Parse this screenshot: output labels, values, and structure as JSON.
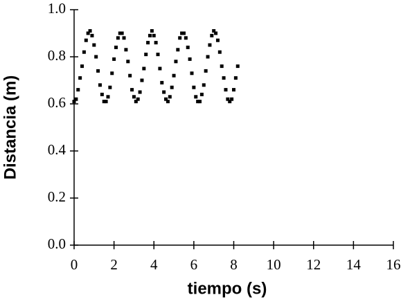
{
  "chart_data": {
    "type": "scatter",
    "x_label": "tiempo (s)",
    "y_label": "Distancia (m)",
    "x": [
      0,
      0.1,
      0.2,
      0.3,
      0.4,
      0.5,
      0.6,
      0.7,
      0.8,
      0.9,
      1.0,
      1.1,
      1.2,
      1.3,
      1.4,
      1.5,
      1.6,
      1.7,
      1.8,
      1.9,
      2.0,
      2.1,
      2.2,
      2.3,
      2.4,
      2.5,
      2.6,
      2.7,
      2.8,
      2.9,
      3.0,
      3.1,
      3.2,
      3.3,
      3.4,
      3.5,
      3.6,
      3.7,
      3.8,
      3.9,
      4.0,
      4.1,
      4.2,
      4.3,
      4.4,
      4.5,
      4.6,
      4.7,
      4.8,
      4.9,
      5.0,
      5.1,
      5.2,
      5.3,
      5.4,
      5.5,
      5.6,
      5.7,
      5.8,
      5.9,
      6.0,
      6.1,
      6.2,
      6.3,
      6.4,
      6.5,
      6.6,
      6.7,
      6.8,
      6.9,
      7.0,
      7.1,
      7.2,
      7.3,
      7.4,
      7.5,
      7.6,
      7.7,
      7.8,
      7.9,
      8.0,
      8.1,
      8.2
    ],
    "values": [
      0.61,
      0.62,
      0.66,
      0.71,
      0.76,
      0.82,
      0.87,
      0.9,
      0.91,
      0.89,
      0.85,
      0.8,
      0.74,
      0.68,
      0.64,
      0.61,
      0.61,
      0.63,
      0.67,
      0.73,
      0.79,
      0.84,
      0.88,
      0.9,
      0.9,
      0.88,
      0.83,
      0.78,
      0.72,
      0.66,
      0.63,
      0.61,
      0.62,
      0.65,
      0.7,
      0.75,
      0.81,
      0.86,
      0.89,
      0.91,
      0.89,
      0.86,
      0.81,
      0.75,
      0.69,
      0.65,
      0.62,
      0.61,
      0.63,
      0.67,
      0.72,
      0.78,
      0.83,
      0.88,
      0.9,
      0.9,
      0.88,
      0.84,
      0.79,
      0.73,
      0.67,
      0.63,
      0.61,
      0.61,
      0.64,
      0.68,
      0.74,
      0.8,
      0.85,
      0.89,
      0.91,
      0.9,
      0.87,
      0.82,
      0.76,
      0.71,
      0.66,
      0.62,
      0.61,
      0.62,
      0.66,
      0.71,
      0.76
    ],
    "color": "#000000",
    "xlim": [
      0,
      16
    ],
    "xticks": [
      0,
      2,
      4,
      6,
      8,
      10,
      12,
      14,
      16
    ],
    "ylim": [
      0,
      1
    ],
    "yticks": [
      {
        "value": 0,
        "label": "0.0"
      },
      0.2,
      0.4,
      0.6,
      0.8,
      {
        "value": 1,
        "label": "1.0"
      }
    ]
  }
}
